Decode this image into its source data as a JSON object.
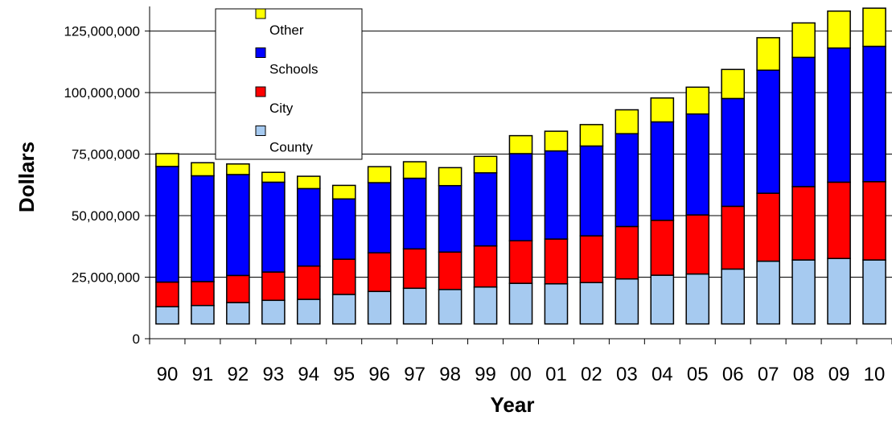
{
  "chart_data": {
    "type": "bar",
    "stacked": true,
    "title": "",
    "xlabel": "Year",
    "ylabel": "Dollars",
    "categories": [
      "90",
      "91",
      "92",
      "93",
      "94",
      "95",
      "96",
      "97",
      "98",
      "99",
      "00",
      "01",
      "02",
      "03",
      "04",
      "05",
      "06",
      "07",
      "08",
      "09",
      "10"
    ],
    "ylim": [
      0,
      135000000
    ],
    "yticks": [
      0,
      25000000,
      50000000,
      75000000,
      100000000,
      125000000
    ],
    "ytick_labels": [
      "0",
      "25,000,000",
      "50,000,000",
      "75,000,000",
      "100,000,000",
      "125,000,000"
    ],
    "grid": "horizontal",
    "legend_position": "top-left",
    "series": [
      {
        "name": "County",
        "color": "#a6caf0",
        "values": [
          7000000,
          7500000,
          8700000,
          9600000,
          10000000,
          12000000,
          13200000,
          14500000,
          14000000,
          15000000,
          16500000,
          16300000,
          16800000,
          18300000,
          19800000,
          20300000,
          22300000,
          25500000,
          26000000,
          26600000,
          26000000
        ]
      },
      {
        "name": "City",
        "color": "#ff0000",
        "values": [
          10000000,
          9700000,
          11000000,
          11500000,
          13500000,
          14300000,
          15700000,
          16000000,
          15200000,
          16700000,
          17300000,
          18200000,
          19000000,
          21300000,
          22300000,
          24000000,
          25500000,
          27600000,
          29800000,
          31000000,
          31800000
        ]
      },
      {
        "name": "Schools",
        "color": "#0000ff",
        "values": [
          47000000,
          43000000,
          41000000,
          36500000,
          31500000,
          24500000,
          28500000,
          28700000,
          27000000,
          29700000,
          35400000,
          35800000,
          36500000,
          37700000,
          40000000,
          41000000,
          43800000,
          50000000,
          52500000,
          54500000,
          55000000
        ]
      },
      {
        "name": "Other",
        "color": "#ffff00",
        "values": [
          5200000,
          5300000,
          4300000,
          4000000,
          5000000,
          5500000,
          6500000,
          6700000,
          7300000,
          6700000,
          7300000,
          8000000,
          8700000,
          9700000,
          9700000,
          10900000,
          11800000,
          13200000,
          14000000,
          15000000,
          15500000
        ]
      }
    ]
  }
}
